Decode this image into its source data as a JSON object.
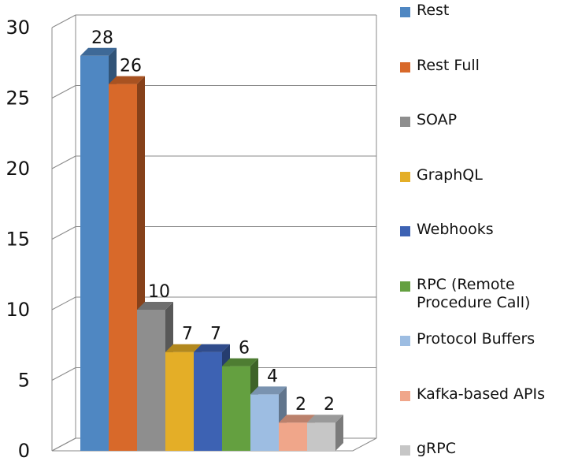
{
  "chart_data": {
    "type": "bar",
    "style": "3d-column",
    "categories": [
      "Rest",
      "Rest Full",
      "SOAP",
      "GraphQL",
      "Webhooks",
      "RPC (Remote\nProcedure Call)",
      "Protocol Buffers",
      "Kafka-based APIs",
      "gRPC"
    ],
    "values": [
      28,
      26,
      10,
      7,
      7,
      6,
      4,
      2,
      2
    ],
    "data_labels": [
      "28",
      "26",
      "10",
      "7",
      "7",
      "6",
      "4",
      "2",
      "2"
    ],
    "colors": [
      "#4f87c2",
      "#d8692a",
      "#8e8e8e",
      "#e4ae27",
      "#3d62b3",
      "#64a040",
      "#9dbde2",
      "#f0a68a",
      "#c6c6c6"
    ],
    "ylim": [
      0,
      30
    ],
    "yticks": [
      "0",
      "5",
      "10",
      "15",
      "20",
      "25",
      "30"
    ],
    "grid": true,
    "legend": "right",
    "title": "",
    "xlabel": "",
    "ylabel": ""
  }
}
